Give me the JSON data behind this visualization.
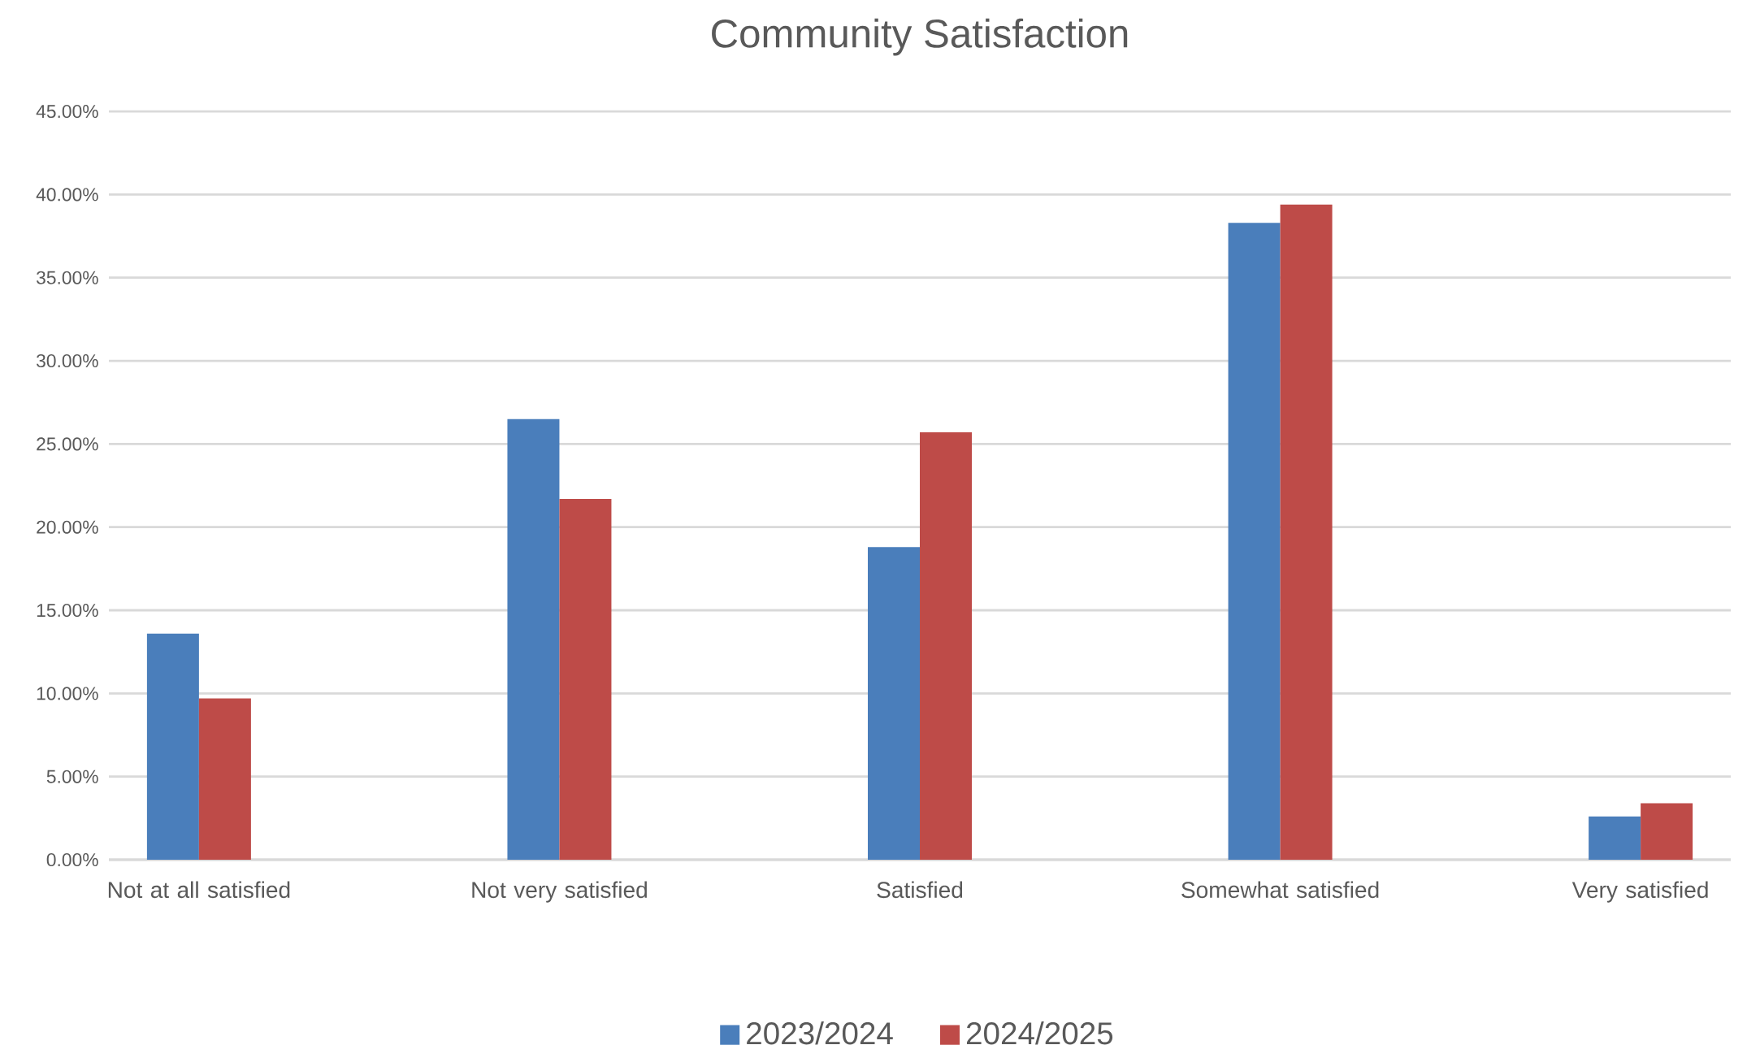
{
  "chart_data": {
    "type": "bar",
    "title": "Community Satisfaction",
    "categories": [
      "Not at all satisfied",
      "Not very satisfied",
      "Satisfied",
      "Somewhat satisfied",
      "Very satisfied"
    ],
    "series": [
      {
        "name": "2023/2024",
        "color": "#4a7ebb",
        "values": [
          13.6,
          26.5,
          18.8,
          38.3,
          2.6
        ]
      },
      {
        "name": "2024/2025",
        "color": "#be4b48",
        "values": [
          9.7,
          21.7,
          25.7,
          39.4,
          3.4
        ]
      }
    ],
    "ylim": [
      0,
      45
    ],
    "yticks": [
      {
        "value": 0,
        "label": "0.00%"
      },
      {
        "value": 5,
        "label": "5.00%"
      },
      {
        "value": 10,
        "label": "10.00%"
      },
      {
        "value": 15,
        "label": "15.00%"
      },
      {
        "value": 20,
        "label": "20.00%"
      },
      {
        "value": 25,
        "label": "25.00%"
      },
      {
        "value": 30,
        "label": "30.00%"
      },
      {
        "value": 35,
        "label": "35.00%"
      },
      {
        "value": 40,
        "label": "40.00%"
      },
      {
        "value": 45,
        "label": "45.00%"
      }
    ],
    "grid": "y",
    "legend": "bottom"
  }
}
